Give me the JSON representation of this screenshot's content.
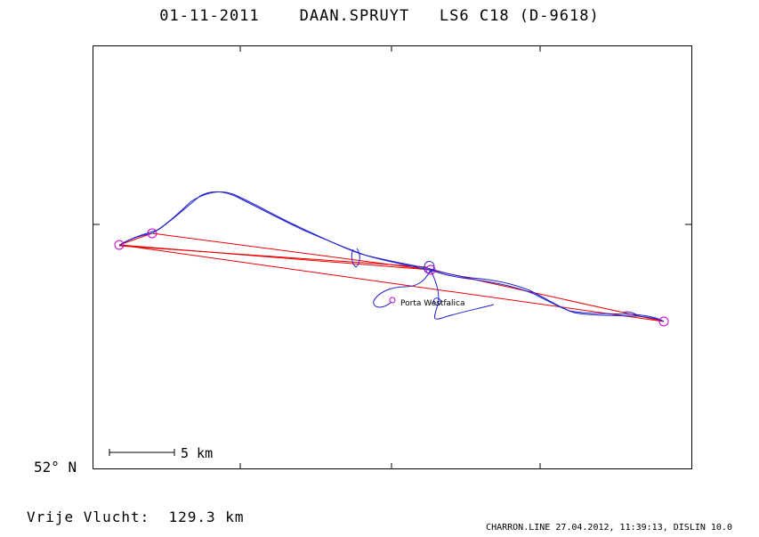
{
  "header": {
    "date": "01-11-2011",
    "pilot": "DAAN.SPRUYT",
    "glider": "LS6 C18 (D-9618)"
  },
  "axes": {
    "latitude_label": "52° N"
  },
  "scale_bar": {
    "label": "5 km"
  },
  "place": {
    "name": "Porta Westfalica"
  },
  "summary": {
    "label": "Vrije Vlucht:",
    "value": "129.3 km"
  },
  "footer": {
    "text": "CHARRON.LINE 27.04.2012, 11:39:13, DISLIN 10.0"
  },
  "colors": {
    "track": "#2222cc",
    "task": "#ee0000",
    "turnpoint": "#cc00cc"
  },
  "icons": [
    "turnpoint-circle-icon",
    "airfield-marker-icon"
  ]
}
